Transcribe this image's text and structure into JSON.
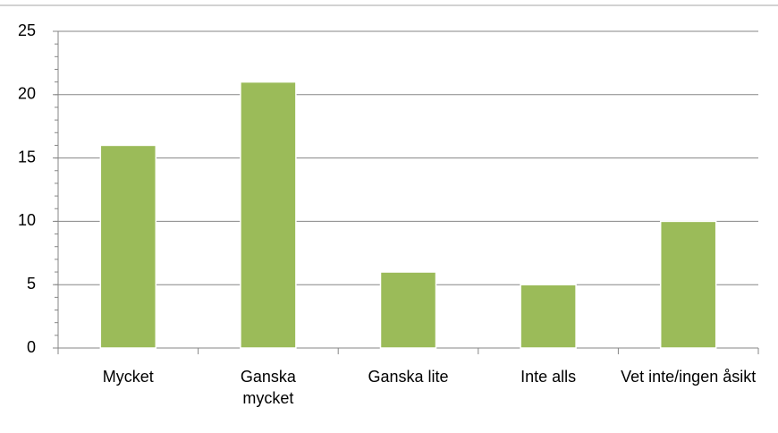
{
  "chart_data": {
    "type": "bar",
    "categories": [
      "Mycket",
      "Ganska mycket",
      "Ganska lite",
      "Inte alls",
      "Vet inte/ingen åsikt"
    ],
    "values": [
      16,
      21,
      6,
      5,
      10
    ],
    "color": "#9bbb59",
    "ylim": [
      0,
      25
    ],
    "yticks": [
      0,
      5,
      10,
      15,
      20,
      25
    ],
    "grid": true
  }
}
